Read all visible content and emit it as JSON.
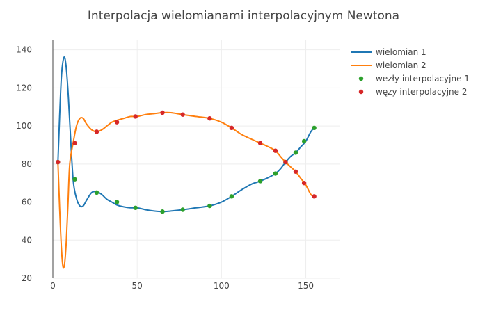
{
  "chart_data": {
    "type": "line",
    "title": "Interpolacja wielomianami interpolacyjnym Newtona",
    "xlabel": "",
    "ylabel": "",
    "xlim": [
      0,
      170
    ],
    "ylim": [
      20,
      145
    ],
    "xticks": [
      "0",
      "50",
      "100",
      "150"
    ],
    "yticks": [
      "20",
      "40",
      "60",
      "80",
      "100",
      "120",
      "140"
    ],
    "grid": true,
    "legend_position": "top-right",
    "colors": {
      "wielomian 1": "#1f77b4",
      "wielomian 2": "#ff7f0e",
      "nodes 1": "#2ca02c",
      "nodes 2": "#d62728"
    },
    "series": [
      {
        "name": "wielomian 1",
        "mode": "line",
        "x": [
          3,
          4,
          5,
          6,
          7,
          8,
          9,
          10,
          12,
          14,
          16,
          18,
          20,
          23,
          26,
          29,
          32,
          35,
          38,
          42,
          46,
          50,
          55,
          60,
          65,
          70,
          77,
          85,
          93,
          100,
          106,
          112,
          118,
          123,
          128,
          132,
          135,
          138,
          141,
          144,
          147,
          150,
          153,
          155
        ],
        "y": [
          81,
          105,
          125,
          134,
          136,
          130,
          118,
          102,
          72,
          62,
          58,
          58,
          61,
          65,
          65.5,
          64,
          61.5,
          60,
          58.5,
          57.5,
          57,
          57,
          56,
          55.3,
          55,
          55.3,
          56,
          57,
          58,
          60,
          63,
          66.5,
          69.5,
          71,
          73,
          75,
          77.5,
          81,
          84,
          86,
          89,
          92,
          97,
          99
        ]
      },
      {
        "name": "wielomian 2",
        "mode": "line",
        "x": [
          3,
          4,
          5,
          6,
          7,
          8,
          9,
          10,
          12,
          14,
          16,
          18,
          20,
          23,
          26,
          29,
          32,
          35,
          38,
          42,
          46,
          50,
          55,
          60,
          65,
          70,
          77,
          85,
          93,
          100,
          106,
          112,
          118,
          123,
          128,
          132,
          135,
          138,
          141,
          144,
          147,
          150,
          153,
          155
        ],
        "y": [
          81,
          57,
          37,
          26,
          28,
          40,
          60,
          80,
          91,
          100,
          104,
          104,
          101,
          98,
          97,
          98,
          100,
          102,
          103,
          104,
          105,
          105,
          106,
          106.5,
          107,
          107,
          106,
          105,
          104,
          102,
          99,
          95.5,
          93,
          91,
          89,
          87,
          84,
          81,
          78.5,
          76,
          72.5,
          69,
          64,
          63
        ]
      },
      {
        "name": "wezły interpolacyjne 1",
        "mode": "markers",
        "x": [
          3,
          13,
          26,
          38,
          49,
          65,
          77,
          93,
          106,
          123,
          132,
          138,
          144,
          149,
          155
        ],
        "y": [
          81,
          72,
          65,
          60,
          57,
          55,
          56,
          58,
          63,
          71,
          75,
          81,
          86,
          92,
          99
        ]
      },
      {
        "name": "węzy interpolacyjne 2",
        "mode": "markers",
        "x": [
          3,
          13,
          26,
          38,
          49,
          65,
          77,
          93,
          106,
          123,
          132,
          138,
          144,
          149,
          155
        ],
        "y": [
          81,
          91,
          97,
          102,
          105,
          107,
          106,
          104,
          99,
          91,
          87,
          81,
          76,
          70,
          63
        ]
      }
    ]
  }
}
